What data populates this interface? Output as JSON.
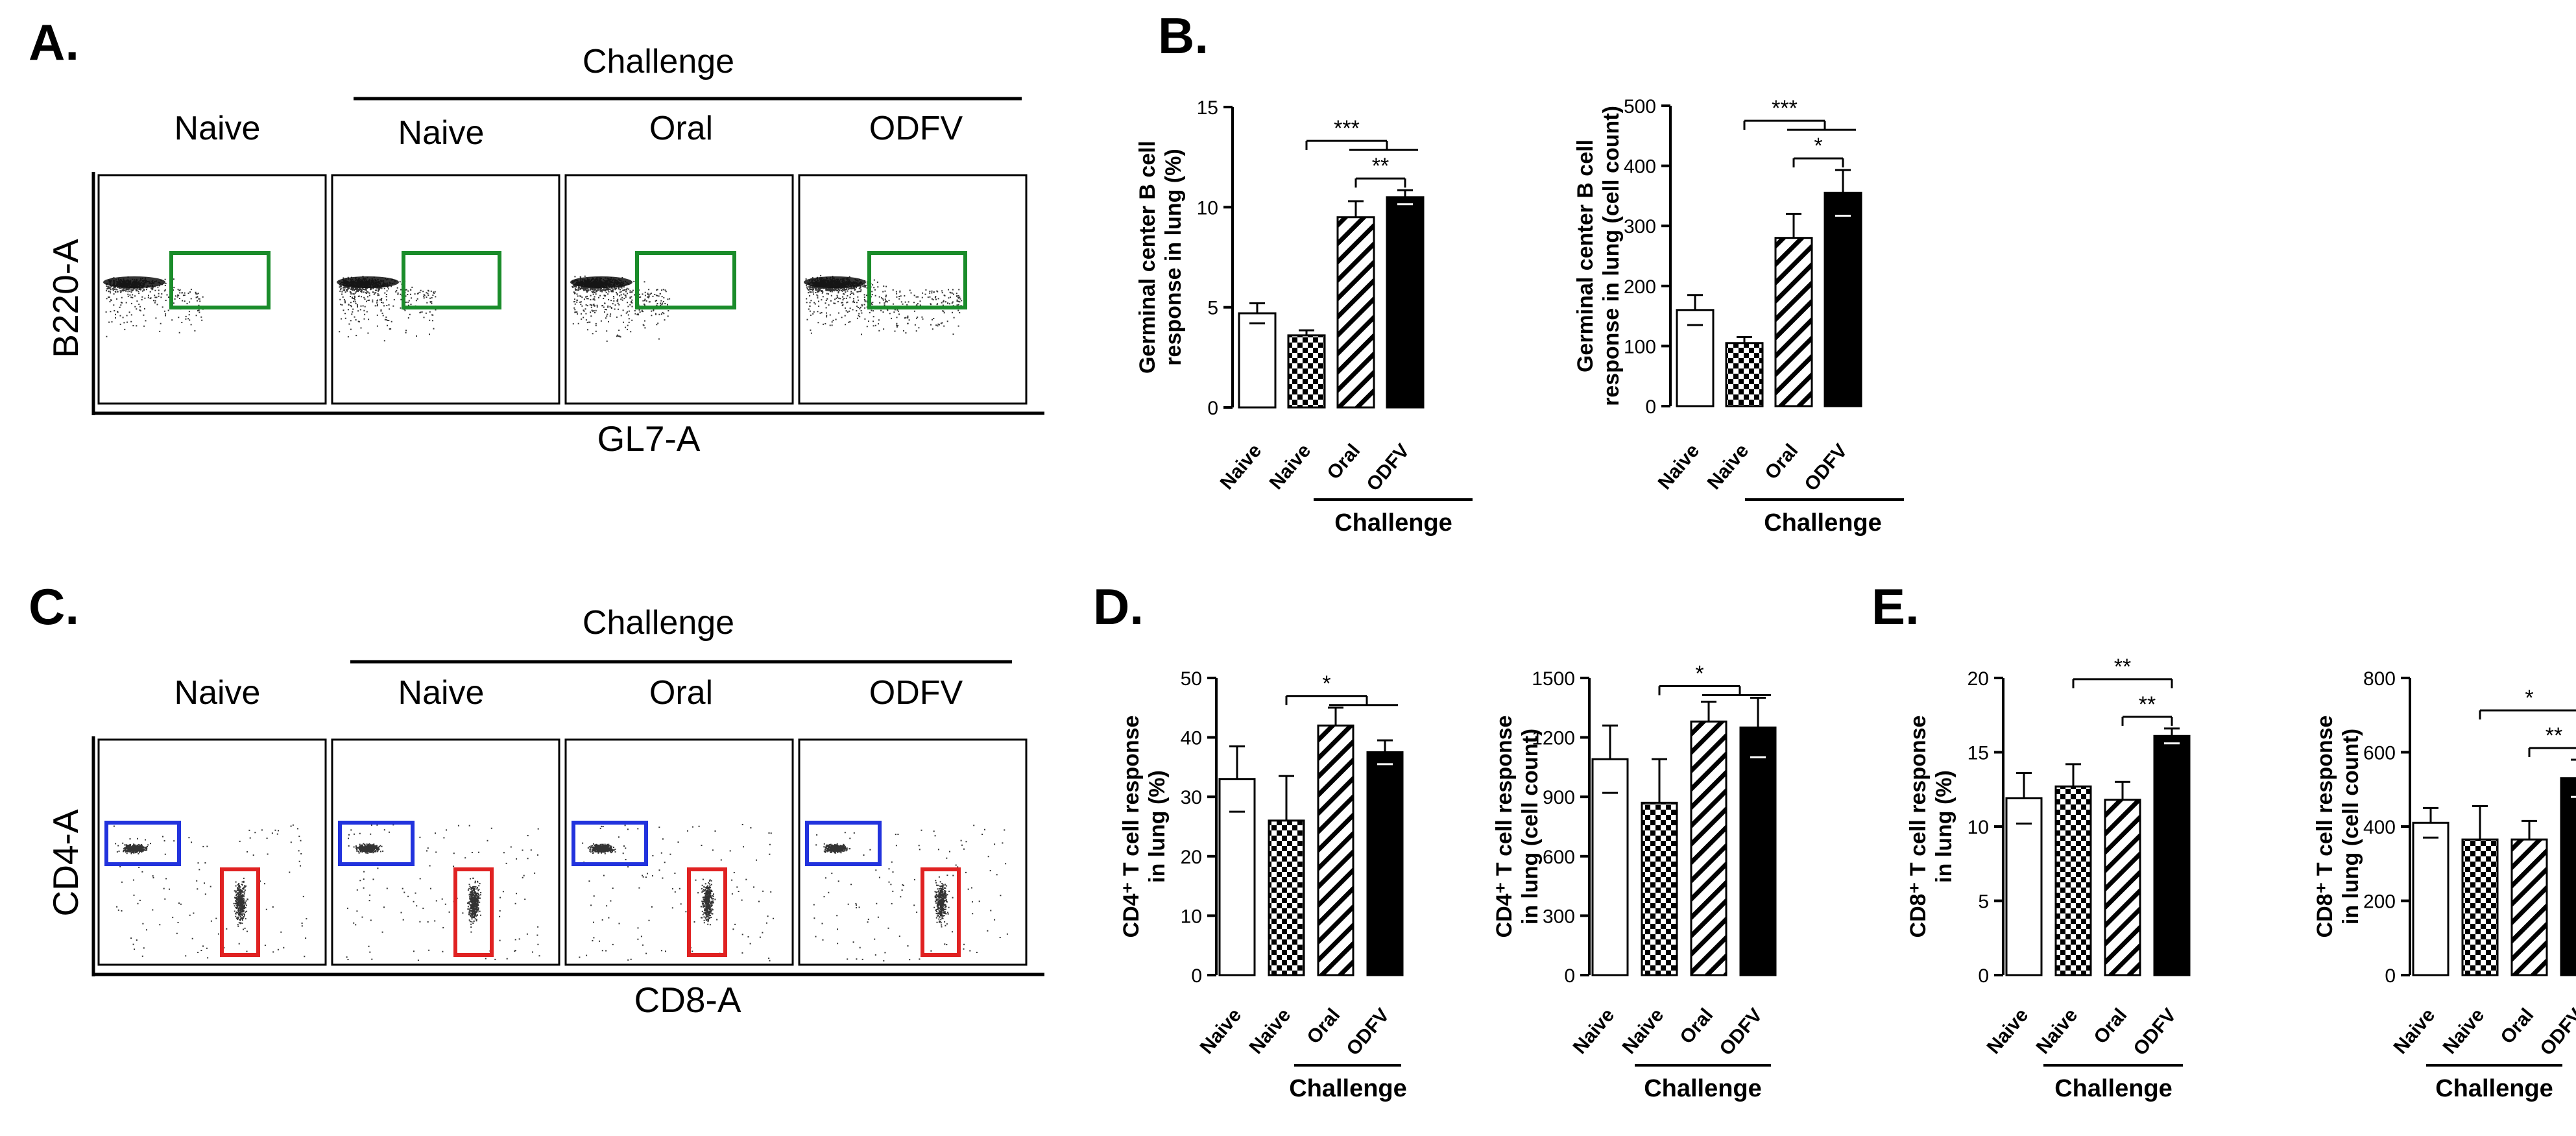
{
  "panels": {
    "a": "A.",
    "b": "B.",
    "c": "C.",
    "d": "D.",
    "e": "E."
  },
  "flow": {
    "challenge_label": "Challenge",
    "groups": [
      "Naive",
      "Naive",
      "Oral",
      "ODFV"
    ],
    "panel_a": {
      "y_axis": "B220-A",
      "x_axis": "GL7-A"
    },
    "panel_c": {
      "y_axis": "CD4-A",
      "x_axis": "CD8-A"
    },
    "colors": {
      "gc_gate": "#1a8c2a",
      "cd4_gate": "#2233dd",
      "cd8_gate": "#e02222"
    }
  },
  "colors": {
    "axis": "#000000",
    "bar_open": "#ffffff",
    "bar_solid": "#000000"
  },
  "chart_data": [
    {
      "id": "B1",
      "type": "bar",
      "panel": "B",
      "ylabel_lines": [
        "Germinal center B cell",
        "response in lung (%)"
      ],
      "categories": [
        "Naive",
        "Naive",
        "Oral",
        "ODFV"
      ],
      "fills": [
        "open",
        "checker",
        "hatch",
        "solid"
      ],
      "values": [
        4.7,
        3.6,
        9.5,
        10.5
      ],
      "errors": [
        0.5,
        0.25,
        0.8,
        0.35
      ],
      "ylim": [
        0,
        15
      ],
      "yticks": [
        0,
        5,
        10,
        15
      ],
      "group_label": "Challenge",
      "significance": [
        {
          "from": 1,
          "to": [
            2,
            3
          ],
          "label": "***"
        },
        {
          "from": 2,
          "to": [
            3
          ],
          "label": "**"
        }
      ]
    },
    {
      "id": "B2",
      "type": "bar",
      "panel": "B",
      "ylabel_lines": [
        "Germinal center B cell",
        "response in lung (cell count)"
      ],
      "categories": [
        "Naive",
        "Naive",
        "Oral",
        "ODFV"
      ],
      "fills": [
        "open",
        "checker",
        "hatch",
        "solid"
      ],
      "values": [
        160,
        105,
        280,
        355
      ],
      "errors": [
        25,
        10,
        40,
        38
      ],
      "ylim": [
        0,
        500
      ],
      "yticks": [
        0,
        100,
        200,
        300,
        400,
        500
      ],
      "group_label": "Challenge",
      "significance": [
        {
          "from": 1,
          "to": [
            2,
            3
          ],
          "label": "***"
        },
        {
          "from": 2,
          "to": [
            3
          ],
          "label": "*"
        }
      ]
    },
    {
      "id": "D1",
      "type": "bar",
      "panel": "D",
      "ylabel_lines": [
        "CD4⁺ T cell response",
        "in lung (%)"
      ],
      "categories": [
        "Naive",
        "Naive",
        "Oral",
        "ODFV"
      ],
      "fills": [
        "open",
        "checker",
        "hatch",
        "solid"
      ],
      "values": [
        33,
        26,
        42,
        37.5
      ],
      "errors": [
        5.5,
        7.5,
        3,
        2
      ],
      "ylim": [
        0,
        50
      ],
      "yticks": [
        0,
        10,
        20,
        30,
        40,
        50
      ],
      "group_label": "Challenge",
      "significance": [
        {
          "from": 1,
          "to": [
            2,
            3
          ],
          "label": "*"
        }
      ]
    },
    {
      "id": "D2",
      "type": "bar",
      "panel": "D",
      "ylabel_lines": [
        "CD4⁺ T cell response",
        "in lung (cell count)"
      ],
      "categories": [
        "Naive",
        "Naive",
        "Oral",
        "ODFV"
      ],
      "fills": [
        "open",
        "checker",
        "hatch",
        "solid"
      ],
      "values": [
        1090,
        870,
        1280,
        1250
      ],
      "errors": [
        170,
        220,
        100,
        150
      ],
      "ylim": [
        0,
        1500
      ],
      "yticks": [
        0,
        300,
        600,
        900,
        1200,
        1500
      ],
      "group_label": "Challenge",
      "significance": [
        {
          "from": 1,
          "to": [
            2,
            3
          ],
          "label": "*"
        }
      ]
    },
    {
      "id": "E1",
      "type": "bar",
      "panel": "E",
      "ylabel_lines": [
        "CD8⁺ T cell response",
        "in lung (%)"
      ],
      "categories": [
        "Naive",
        "Naive",
        "Oral",
        "ODFV"
      ],
      "fills": [
        "open",
        "checker",
        "hatch",
        "solid"
      ],
      "values": [
        11.9,
        12.7,
        11.8,
        16.1
      ],
      "errors": [
        1.7,
        1.5,
        1.2,
        0.5
      ],
      "ylim": [
        0,
        20
      ],
      "yticks": [
        0,
        5,
        10,
        15,
        20
      ],
      "group_label": "Challenge",
      "significance": [
        {
          "from": 1,
          "to": [
            3
          ],
          "label": "**"
        },
        {
          "from": 2,
          "to": [
            3
          ],
          "label": "**"
        }
      ]
    },
    {
      "id": "E2",
      "type": "bar",
      "panel": "E",
      "ylabel_lines": [
        "CD8⁺ T cell response",
        "in lung (cell count)"
      ],
      "categories": [
        "Naive",
        "Naive",
        "Oral",
        "ODFV"
      ],
      "fills": [
        "open",
        "checker",
        "hatch",
        "solid"
      ],
      "values": [
        410,
        365,
        365,
        530
      ],
      "errors": [
        40,
        90,
        50,
        50
      ],
      "ylim": [
        0,
        800
      ],
      "yticks": [
        0,
        200,
        400,
        600,
        800
      ],
      "group_label": "Challenge",
      "significance": [
        {
          "from": 1,
          "to": [
            3
          ],
          "label": "*"
        },
        {
          "from": 2,
          "to": [
            3
          ],
          "label": "**"
        }
      ]
    }
  ]
}
